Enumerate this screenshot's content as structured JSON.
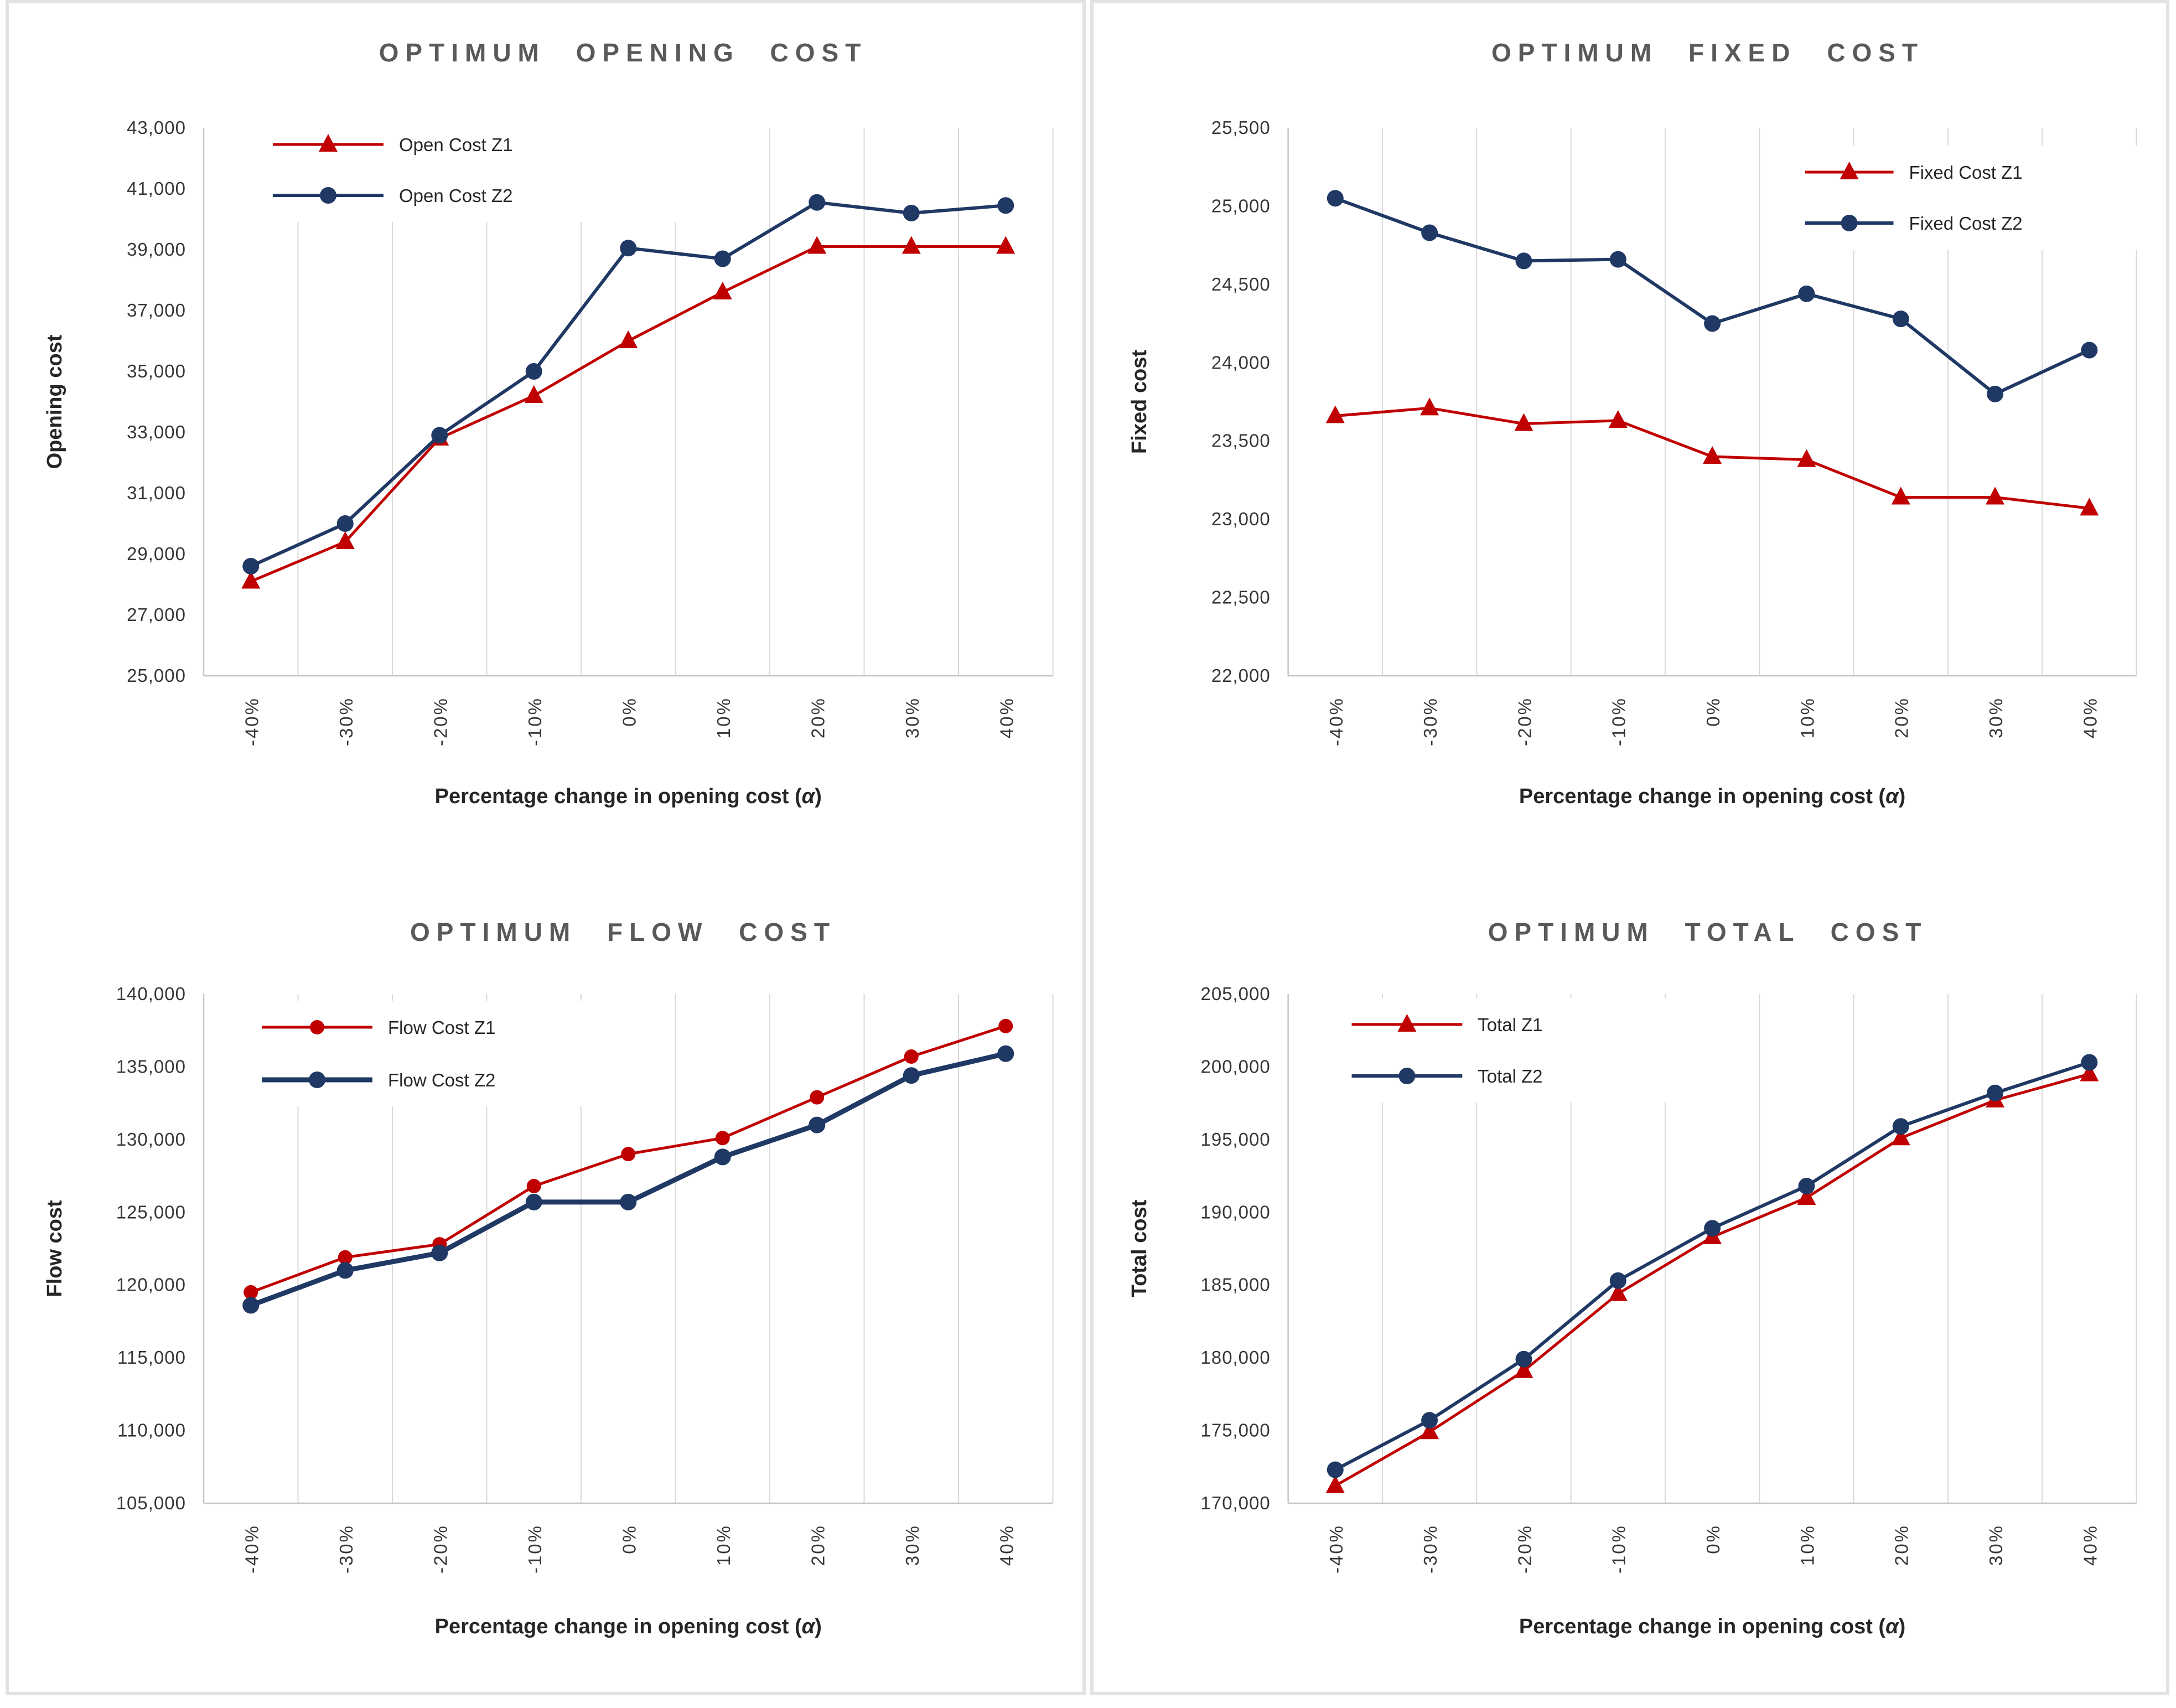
{
  "page": {
    "background": "#ffffff",
    "panel_border_color": "#e2e2e2"
  },
  "colors": {
    "z1_red": "#C00000",
    "z2_navy": "#1F3864",
    "gridline": "#D9D9D9",
    "axis_line": "#C6C6C6",
    "title_gray": "#595959",
    "tick_label": "#363636"
  },
  "chart_data": [
    {
      "type": "line",
      "title": "OPTIMUM OPENING COST",
      "xlabel": "Percentage change in opening cost (α)",
      "ylabel": "Opening cost",
      "ylim": [
        25000,
        43000
      ],
      "ytick_step": 2000,
      "grid": "vertical-only",
      "legend_position": "topleft",
      "categories": [
        "-40%",
        "-30%",
        "-20%",
        "-10%",
        "0%",
        "10%",
        "20%",
        "30%",
        "40%"
      ],
      "series": [
        {
          "name": "Open Cost Z1",
          "color": "#C00000",
          "marker": "triangle",
          "line_width": 5,
          "values": [
            28100,
            29400,
            32800,
            34200,
            36000,
            37600,
            39100,
            39100,
            39100
          ]
        },
        {
          "name": "Open Cost Z2",
          "color": "#1F3864",
          "marker": "circle",
          "line_width": 6,
          "values": [
            28600,
            30000,
            32900,
            35000,
            39050,
            38700,
            40550,
            40200,
            40450
          ]
        }
      ]
    },
    {
      "type": "line",
      "title": "OPTIMUM FIXED COST",
      "xlabel": "Percentage change in opening cost (α)",
      "ylabel": "Fixed cost",
      "ylim": [
        22000,
        25500
      ],
      "ytick_step": 500,
      "grid": "vertical-only",
      "legend_position": "topright",
      "categories": [
        "-40%",
        "-30%",
        "-20%",
        "-10%",
        "0%",
        "10%",
        "20%",
        "30%",
        "40%"
      ],
      "series": [
        {
          "name": "Fixed Cost Z1",
          "color": "#C00000",
          "marker": "triangle",
          "line_width": 5,
          "values": [
            23660,
            23710,
            23610,
            23630,
            23400,
            23380,
            23140,
            23140,
            23070
          ]
        },
        {
          "name": "Fixed Cost Z2",
          "color": "#1F3864",
          "marker": "circle",
          "line_width": 6,
          "values": [
            25050,
            24830,
            24650,
            24660,
            24250,
            24440,
            24280,
            23800,
            24080
          ]
        }
      ]
    },
    {
      "type": "line",
      "title": "OPTIMUM FLOW COST",
      "xlabel": "Percentage change in opening cost (α)",
      "ylabel": "Flow cost",
      "ylim": [
        105000,
        140000
      ],
      "ytick_step": 5000,
      "grid": "vertical-only",
      "legend_position": "topleft",
      "categories": [
        "-40%",
        "-30%",
        "-20%",
        "-10%",
        "0%",
        "10%",
        "20%",
        "30%",
        "40%"
      ],
      "series": [
        {
          "name": "Flow Cost Z1",
          "color": "#C00000",
          "marker": "circle",
          "line_width": 5,
          "values": [
            119500,
            121900,
            122800,
            126800,
            129000,
            130100,
            132900,
            135700,
            137800
          ]
        },
        {
          "name": "Flow Cost Z2",
          "color": "#1F3864",
          "marker": "circle",
          "line_width": 9,
          "values": [
            118600,
            121000,
            122200,
            125700,
            125700,
            128800,
            131000,
            134400,
            135900
          ]
        }
      ]
    },
    {
      "type": "line",
      "title": "OPTIMUM TOTAL COST",
      "xlabel": "Percentage change in opening cost (α)",
      "ylabel": "Total cost",
      "ylim": [
        170000,
        205000
      ],
      "ytick_step": 5000,
      "grid": "vertical-only",
      "legend_position": "topleft",
      "categories": [
        "-40%",
        "-30%",
        "-20%",
        "-10%",
        "0%",
        "10%",
        "20%",
        "30%",
        "40%"
      ],
      "series": [
        {
          "name": "Total Z1",
          "color": "#C00000",
          "marker": "triangle",
          "line_width": 5,
          "values": [
            171200,
            174900,
            179100,
            184400,
            188300,
            191000,
            195100,
            197700,
            199500
          ]
        },
        {
          "name": "Total Z2",
          "color": "#1F3864",
          "marker": "circle",
          "line_width": 6,
          "values": [
            172300,
            175700,
            179900,
            185300,
            188900,
            191800,
            195900,
            198200,
            200300
          ]
        }
      ]
    }
  ]
}
